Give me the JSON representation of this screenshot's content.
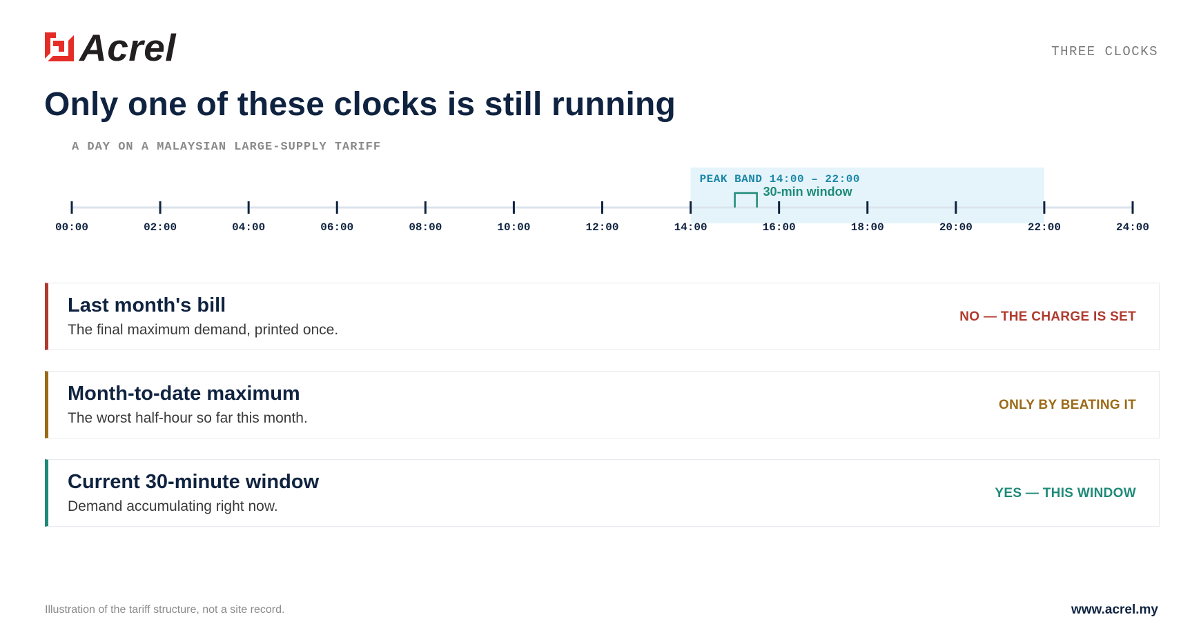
{
  "brand": {
    "name": "Acrel",
    "logo_icon": "acrel-logo-icon",
    "logo_color": "#e52d27"
  },
  "header": {
    "kicker": "THREE CLOCKS",
    "title": "Only one of these clocks is still running",
    "subtitle": "A DAY ON A MALAYSIAN LARGE-SUPPLY TARIFF"
  },
  "timeline": {
    "start_hour": 0,
    "end_hour": 24,
    "tick_labels": [
      "00:00",
      "02:00",
      "04:00",
      "06:00",
      "08:00",
      "10:00",
      "12:00",
      "14:00",
      "16:00",
      "18:00",
      "20:00",
      "22:00",
      "24:00"
    ],
    "peak_band": {
      "label": "PEAK BAND 14:00 – 22:00",
      "start_hour": 14,
      "end_hour": 22,
      "color": "#e5f4fb"
    },
    "window": {
      "label": "30-min window",
      "start_hour": 15,
      "end_hour": 15.5,
      "color": "#1e8a78"
    }
  },
  "rows": [
    {
      "label": "Last month's bill",
      "description": "The final maximum demand, printed once.",
      "status": "NO — THE CHARGE IS SET",
      "color": "#b03a2e"
    },
    {
      "label": "Month-to-date maximum",
      "description": "The worst half-hour so far this month.",
      "status": "ONLY BY BEATING IT",
      "color": "#9a6a16"
    },
    {
      "label": "Current 30-minute window",
      "description": "Demand accumulating right now.",
      "status": "YES — THIS WINDOW",
      "color": "#1e8a78"
    }
  ],
  "footer": {
    "note": "Illustration of the tariff structure, not a site record.",
    "website": "www.acrel.my"
  }
}
